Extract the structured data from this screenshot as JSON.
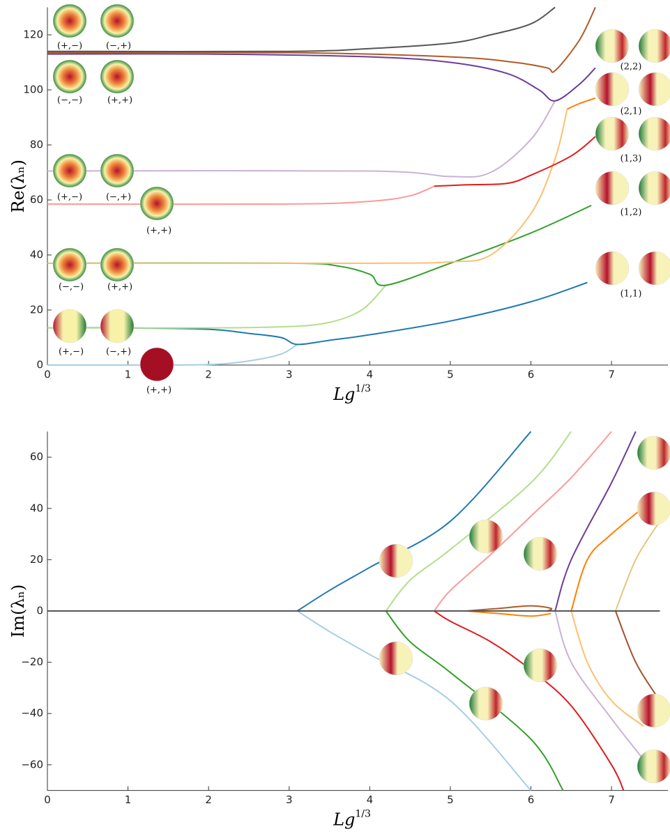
{
  "chart_data": [
    {
      "type": "line",
      "y_label": "Re(λₙ)",
      "x_label": "Lg",
      "x_label_exponent": "1/3",
      "xlim": [
        0,
        7.7
      ],
      "xticks": [
        0,
        1,
        2,
        3,
        4,
        5,
        6,
        7
      ],
      "ylim": [
        0,
        130
      ],
      "yticks": [
        0,
        20,
        40,
        60,
        80,
        100,
        120
      ],
      "annotations": [
        "(+,−)",
        "(−,+)",
        "(−,−)",
        "(+,+)",
        "(+,−)",
        "(−,+)",
        "(+,+)",
        "(−,−)",
        "(+,+)",
        "(+,−)",
        "(−,+)",
        "(+,+)",
        "(2,2)",
        "(2,1)",
        "(1,3)",
        "(1,2)",
        "(1,1)"
      ],
      "series": [
        {
          "color": "#a6cee3",
          "x": [
            0,
            1,
            2,
            2.5,
            2.9,
            3.1
          ],
          "values": [
            0,
            0,
            0.2,
            1.5,
            4,
            7.5
          ]
        },
        {
          "color": "#1f78b4",
          "x": [
            0,
            1,
            2,
            2.5,
            2.9,
            3.1,
            3.5,
            4,
            5,
            6,
            6.7
          ],
          "values": [
            13.5,
            13.5,
            13,
            11.5,
            10,
            7.5,
            9,
            11,
            16,
            23,
            30
          ]
        },
        {
          "color": "#b2df8a",
          "x": [
            0,
            2,
            3,
            3.5,
            3.9,
            4.2
          ],
          "values": [
            13.5,
            13.5,
            14,
            15.5,
            20,
            29
          ]
        },
        {
          "color": "#33a02c",
          "x": [
            0,
            3,
            3.6,
            4,
            4.2,
            5,
            6,
            6.75
          ],
          "values": [
            37,
            37,
            36,
            33,
            29,
            37,
            48,
            58
          ]
        },
        {
          "color": "#fdbf6f",
          "x": [
            0,
            4,
            5,
            5.5,
            6,
            6.3,
            6.45
          ],
          "values": [
            37,
            37,
            37.5,
            40,
            55,
            75,
            93
          ]
        },
        {
          "color": "#fb9a99",
          "x": [
            0,
            3,
            4,
            4.5,
            4.8
          ],
          "values": [
            58.5,
            58.5,
            59.5,
            61.5,
            65
          ]
        },
        {
          "color": "#e31a1c",
          "x": [
            4.8,
            5.2,
            5.7,
            6,
            6.5,
            6.8
          ],
          "values": [
            65,
            65.5,
            66,
            69,
            76,
            83
          ]
        },
        {
          "color": "#cab2d6",
          "x": [
            0,
            4,
            5,
            5.5,
            6,
            6.3
          ],
          "values": [
            70.5,
            70.5,
            68.5,
            70,
            82,
            96
          ]
        },
        {
          "color": "#6a3d9a",
          "x": [
            0,
            2,
            4,
            5,
            5.7,
            6.1,
            6.3,
            6.6,
            6.8
          ],
          "values": [
            113,
            113,
            112,
            110,
            106,
            100,
            96,
            102,
            108
          ]
        },
        {
          "color": "#ff7f00",
          "x": [
            6.45,
            6.6,
            6.8
          ],
          "values": [
            93,
            95,
            97
          ]
        },
        {
          "color": "#b15928",
          "x": [
            0,
            3,
            5,
            5.8,
            6.2,
            6.3,
            6.6,
            6.8
          ],
          "values": [
            113.5,
            113.5,
            112,
            110,
            108,
            107,
            118,
            130
          ]
        },
        {
          "color": "#555555",
          "x": [
            0,
            3,
            4,
            5,
            5.5,
            6,
            6.3
          ],
          "values": [
            114,
            114,
            115,
            117,
            120,
            124,
            130
          ]
        }
      ]
    },
    {
      "type": "line",
      "y_label": "Im(λₙ)",
      "x_label": "Lg",
      "x_label_exponent": "1/3",
      "xlim": [
        0,
        7.7
      ],
      "xticks": [
        0,
        1,
        2,
        3,
        4,
        5,
        6,
        7
      ],
      "ylim": [
        -70,
        70
      ],
      "yticks": [
        {
          "value": -60,
          "label": "−60"
        },
        {
          "value": -40,
          "label": "−40"
        },
        {
          "value": -20,
          "label": "−20"
        },
        0,
        20,
        40,
        60
      ],
      "series": [
        {
          "color": "#a6cee3",
          "x": [
            3.1,
            3.5,
            4,
            5,
            6
          ],
          "values": [
            0,
            -8,
            -17,
            -35,
            -70
          ]
        },
        {
          "color": "#1f78b4",
          "x": [
            3.1,
            3.5,
            4,
            5,
            6
          ],
          "values": [
            0,
            8,
            17,
            35,
            70
          ]
        },
        {
          "color": "#b2df8a",
          "x": [
            4.2,
            4.5,
            5,
            6,
            6.5
          ],
          "values": [
            0,
            12,
            24,
            50,
            70
          ]
        },
        {
          "color": "#33a02c",
          "x": [
            4.2,
            4.5,
            5,
            6,
            6.4
          ],
          "values": [
            0,
            -12,
            -24,
            -50,
            -70
          ]
        },
        {
          "color": "#fb9a99",
          "x": [
            4.8,
            5,
            5.5,
            6,
            6.5,
            7
          ],
          "values": [
            0,
            8,
            22,
            37,
            52,
            70
          ]
        },
        {
          "color": "#e31a1c",
          "x": [
            4.8,
            5,
            5.5,
            6,
            6.5,
            7,
            7.15
          ],
          "values": [
            0,
            -4,
            -12,
            -23,
            -37,
            -60,
            -70
          ]
        },
        {
          "color": "#b15928",
          "x": [
            5.2,
            5.6,
            6,
            6.25,
            6.2
          ],
          "values": [
            0,
            1,
            2,
            1,
            0
          ]
        },
        {
          "color": "#ff7f00",
          "x": [
            5.2,
            5.6,
            6,
            6.25
          ],
          "values": [
            0,
            -1,
            -2,
            -1
          ]
        },
        {
          "color": "#6a3d9a",
          "x": [
            6.3,
            6.5,
            7,
            7.3
          ],
          "values": [
            0,
            20,
            50,
            70
          ]
        },
        {
          "color": "#cab2d6",
          "x": [
            6.3,
            6.5,
            7,
            7.5
          ],
          "values": [
            0,
            -20,
            -42,
            -62
          ]
        },
        {
          "color": "#ff7f00",
          "x": [
            6.5,
            6.7,
            7,
            7.5
          ],
          "values": [
            0,
            20,
            30,
            43
          ]
        },
        {
          "color": "#fdbf6f",
          "x": [
            6.5,
            6.7,
            7,
            7.4
          ],
          "values": [
            0,
            -20,
            -35,
            -45
          ]
        },
        {
          "color": "#e6c57e",
          "x": [
            7.05,
            7.3,
            7.6
          ],
          "values": [
            0,
            20,
            35
          ]
        },
        {
          "color": "#a0522d",
          "x": [
            7.05,
            7.3,
            7.6
          ],
          "values": [
            0,
            -20,
            -35
          ]
        },
        {
          "color": "#555555",
          "x": [
            0,
            7.6
          ],
          "values": [
            0,
            0
          ]
        }
      ]
    }
  ]
}
